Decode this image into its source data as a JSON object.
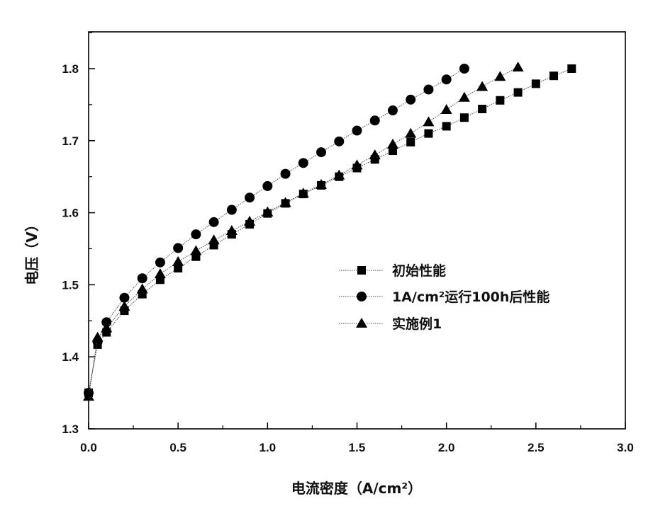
{
  "chart_data": {
    "type": "line",
    "xlabel": "电流密度（A/cm²）",
    "ylabel": "电压（V）",
    "xlim": [
      0.0,
      3.0
    ],
    "ylim": [
      1.3,
      1.85
    ],
    "xticks": [
      "0.0",
      "0.5",
      "1.0",
      "1.5",
      "2.0",
      "2.5",
      "3.0"
    ],
    "yticks": [
      "1.3",
      "1.4",
      "1.5",
      "1.6",
      "1.7",
      "1.8"
    ],
    "grid": false,
    "legend_position": "middle-right",
    "series": [
      {
        "name": "初始性能",
        "marker": "square",
        "x": [
          0,
          0.05,
          0.1,
          0.2,
          0.3,
          0.4,
          0.5,
          0.6,
          0.7,
          0.8,
          0.9,
          1.0,
          1.1,
          1.2,
          1.3,
          1.4,
          1.5,
          1.6,
          1.7,
          1.8,
          1.9,
          2.0,
          2.1,
          2.2,
          2.3,
          2.4,
          2.5,
          2.6,
          2.7
        ],
        "y": [
          1.35,
          1.417,
          1.434,
          1.464,
          1.487,
          1.507,
          1.523,
          1.539,
          1.555,
          1.57,
          1.584,
          1.599,
          1.613,
          1.626,
          1.638,
          1.65,
          1.662,
          1.674,
          1.686,
          1.698,
          1.71,
          1.72,
          1.732,
          1.744,
          1.756,
          1.767,
          1.779,
          1.79,
          1.8
        ]
      },
      {
        "name": "1A/cm²运行100h后性能",
        "marker": "circle",
        "x": [
          0,
          0.05,
          0.1,
          0.2,
          0.3,
          0.4,
          0.5,
          0.6,
          0.7,
          0.8,
          0.9,
          1.0,
          1.1,
          1.2,
          1.3,
          1.4,
          1.5,
          1.6,
          1.7,
          1.8,
          1.9,
          2.0,
          2.1
        ],
        "y": [
          1.35,
          1.421,
          1.448,
          1.482,
          1.509,
          1.531,
          1.551,
          1.57,
          1.587,
          1.604,
          1.621,
          1.637,
          1.654,
          1.669,
          1.684,
          1.699,
          1.714,
          1.728,
          1.742,
          1.757,
          1.771,
          1.785,
          1.8
        ]
      },
      {
        "name": "实施例1",
        "marker": "triangle",
        "x": [
          0,
          0.05,
          0.1,
          0.2,
          0.3,
          0.4,
          0.5,
          0.6,
          0.7,
          0.8,
          0.9,
          1.0,
          1.1,
          1.2,
          1.3,
          1.4,
          1.5,
          1.6,
          1.7,
          1.8,
          1.9,
          2.0,
          2.1,
          2.2,
          2.3,
          2.4
        ],
        "y": [
          1.345,
          1.427,
          1.44,
          1.47,
          1.494,
          1.515,
          1.532,
          1.547,
          1.562,
          1.575,
          1.588,
          1.601,
          1.614,
          1.627,
          1.639,
          1.652,
          1.666,
          1.68,
          1.695,
          1.71,
          1.726,
          1.743,
          1.76,
          1.775,
          1.789,
          1.802
        ]
      }
    ]
  }
}
